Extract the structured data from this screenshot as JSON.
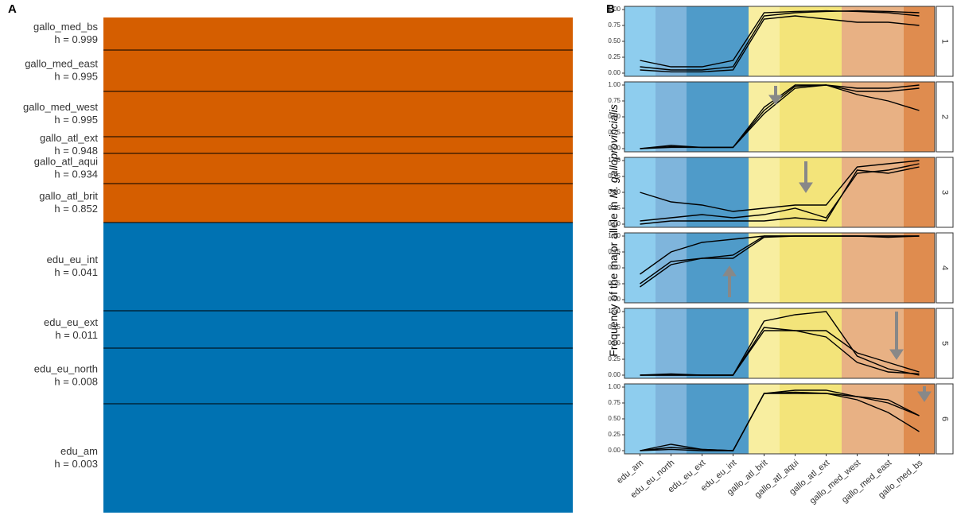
{
  "panel_a": {
    "label": "A",
    "populations": [
      {
        "name": "gallo_med_bs",
        "h": "h = 0.999",
        "color": "#d55e00"
      },
      {
        "name": "gallo_med_east",
        "h": "h = 0.995",
        "color": "#d55e00"
      },
      {
        "name": "gallo_med_west",
        "h": "h = 0.995",
        "color": "#d55e00"
      },
      {
        "name": "gallo_atl_ext",
        "h": "h = 0.948",
        "color": "#d55e00"
      },
      {
        "name": "gallo_atl_aqui",
        "h": "h = 0.934",
        "color": "#d55e00"
      },
      {
        "name": "gallo_atl_brit",
        "h": "h = 0.852",
        "color": "#d55e00"
      },
      {
        "name": "edu_eu_int",
        "h": "h = 0.041",
        "color": "#0072b2"
      },
      {
        "name": "edu_eu_ext",
        "h": "h = 0.011",
        "color": "#0072b2"
      },
      {
        "name": "edu_eu_north",
        "h": "h = 0.008",
        "color": "#0072b2"
      },
      {
        "name": "edu_am",
        "h": "h = 0.003",
        "color": "#0072b2"
      }
    ]
  },
  "chart_data": {
    "type": "line",
    "panel_label": "B",
    "y_label": [
      "Frequency of the major allele in ",
      "M. galloprovincialis"
    ],
    "categories": [
      "edu_am",
      "edu_eu_north",
      "edu_eu_ext",
      "edu_eu_int",
      "gallo_atl_brit",
      "gallo_atl_aqui",
      "gallo_atl_ext",
      "gallo_med_west",
      "gallo_med_east",
      "gallo_med_bs"
    ],
    "band_colors": [
      "#8ecdee",
      "#7fb5dc",
      "#4f9bc9",
      "#4f9bc9",
      "#f8eea0",
      "#f3e47a",
      "#f3e47a",
      "#e8b184",
      "#e8b184",
      "#df8c4f"
    ],
    "ylim": [
      0,
      1
    ],
    "yticks": [
      {
        "value": 0,
        "label": "0.00"
      },
      {
        "value": 0.25,
        "label": "0.25"
      },
      {
        "value": 0.5,
        "label": "0.50"
      },
      {
        "value": 0.75,
        "label": "0.75"
      },
      {
        "value": 1,
        "label": "1.00"
      }
    ],
    "facets": [
      {
        "label": "1",
        "series": [
          {
            "color": "#000000",
            "values": [
              0.2,
              0.1,
              0.1,
              0.2,
              0.95,
              0.97,
              0.98,
              0.97,
              0.95,
              0.9
            ]
          },
          {
            "color": "#000000",
            "values": [
              0.1,
              0.05,
              0.05,
              0.1,
              0.9,
              0.95,
              0.97,
              0.98,
              0.97,
              0.95
            ]
          },
          {
            "color": "#000000",
            "values": [
              0.05,
              0.02,
              0.02,
              0.05,
              0.85,
              0.9,
              0.85,
              0.8,
              0.8,
              0.75
            ]
          }
        ]
      },
      {
        "label": "2",
        "series": [
          {
            "color": "#000000",
            "values": [
              0,
              0.02,
              0.02,
              0.02,
              0.65,
              1,
              1,
              0.95,
              0.95,
              1
            ]
          },
          {
            "color": "#000000",
            "values": [
              0,
              0.05,
              0.02,
              0.02,
              0.6,
              0.98,
              1,
              0.85,
              0.75,
              0.6
            ]
          },
          {
            "color": "#000000",
            "values": [
              0,
              0.03,
              0.02,
              0.02,
              0.55,
              0.95,
              1,
              0.9,
              0.9,
              0.95
            ]
          }
        ]
      },
      {
        "label": "3",
        "series": [
          {
            "color": "#000000",
            "values": [
              0.5,
              0.35,
              0.3,
              0.2,
              0.25,
              0.3,
              0.3,
              0.9,
              0.95,
              1
            ]
          },
          {
            "color": "#000000",
            "values": [
              0.05,
              0.1,
              0.15,
              0.1,
              0.15,
              0.25,
              0.1,
              0.8,
              0.85,
              0.95
            ]
          },
          {
            "color": "#000000",
            "values": [
              0,
              0.05,
              0.05,
              0.05,
              0.05,
              0.1,
              0.05,
              0.85,
              0.8,
              0.9
            ]
          }
        ]
      },
      {
        "label": "4",
        "series": [
          {
            "color": "#000000",
            "values": [
              0.4,
              0.75,
              0.9,
              0.95,
              1,
              1,
              1,
              1,
              1,
              1
            ]
          },
          {
            "color": "#000000",
            "values": [
              0.25,
              0.6,
              0.65,
              0.7,
              1,
              1,
              1,
              1,
              0.98,
              1
            ]
          },
          {
            "color": "#000000",
            "values": [
              0.2,
              0.55,
              0.65,
              0.65,
              0.98,
              1,
              1,
              1,
              1,
              1
            ]
          }
        ]
      },
      {
        "label": "5",
        "series": [
          {
            "color": "#000000",
            "values": [
              0,
              0,
              0,
              0,
              0.85,
              0.95,
              1,
              0.3,
              0.1,
              0
            ]
          },
          {
            "color": "#000000",
            "values": [
              0,
              0.02,
              0,
              0,
              0.75,
              0.7,
              0.6,
              0.2,
              0.05,
              0.02
            ]
          },
          {
            "color": "#000000",
            "values": [
              0,
              0,
              0,
              0,
              0.7,
              0.7,
              0.7,
              0.35,
              0.2,
              0.05
            ]
          }
        ]
      },
      {
        "label": "6",
        "series": [
          {
            "color": "#000000",
            "values": [
              0,
              0.1,
              0.02,
              0,
              0.9,
              0.95,
              0.95,
              0.85,
              0.8,
              0.55
            ]
          },
          {
            "color": "#000000",
            "values": [
              0,
              0.05,
              0.02,
              0,
              0.9,
              0.92,
              0.9,
              0.85,
              0.75,
              0.55
            ]
          },
          {
            "color": "#000000",
            "values": [
              0,
              0.02,
              0,
              0,
              0.9,
              0.9,
              0.9,
              0.8,
              0.6,
              0.3
            ]
          }
        ]
      }
    ]
  }
}
